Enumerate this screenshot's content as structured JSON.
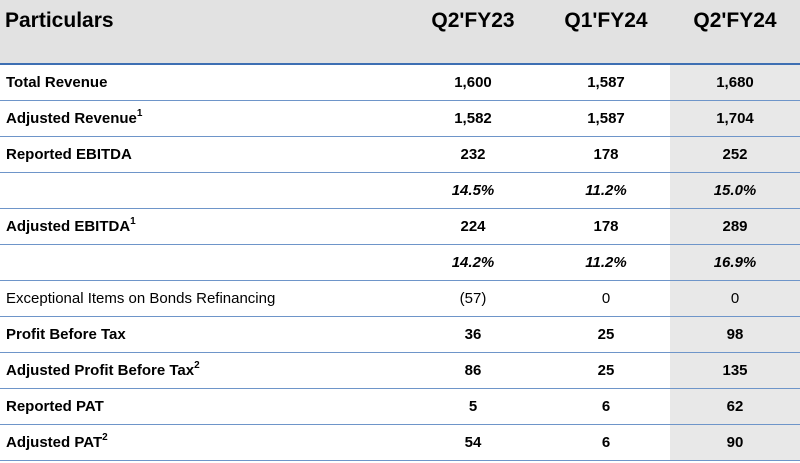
{
  "header": {
    "particulars": "Particulars",
    "periods": [
      "Q2'FY23",
      "Q1'FY24",
      "Q2'FY24"
    ]
  },
  "rows": [
    {
      "label": "Total Revenue",
      "sup": "",
      "values": [
        "1,600",
        "1,587",
        "1,680"
      ],
      "style": "b"
    },
    {
      "label": "Adjusted Revenue",
      "sup": "1",
      "values": [
        "1,582",
        "1,587",
        "1,704"
      ],
      "style": "b"
    },
    {
      "label": "Reported EBITDA",
      "sup": "",
      "values": [
        "232",
        "178",
        "252"
      ],
      "style": "b"
    },
    {
      "label": "",
      "sup": "",
      "values": [
        "14.5%",
        "11.2%",
        "15.0%"
      ],
      "style": "bi"
    },
    {
      "label": "Adjusted EBITDA",
      "sup": "1",
      "values": [
        "224",
        "178",
        "289"
      ],
      "style": "b"
    },
    {
      "label": "",
      "sup": "",
      "values": [
        "14.2%",
        "11.2%",
        "16.9%"
      ],
      "style": "bi"
    },
    {
      "label": "Exceptional Items on Bonds Refinancing",
      "sup": "",
      "values": [
        "(57)",
        "0",
        "0"
      ],
      "style": "n"
    },
    {
      "label": "Profit Before Tax",
      "sup": "",
      "values": [
        "36",
        "25",
        "98"
      ],
      "style": "b"
    },
    {
      "label": "Adjusted Profit Before Tax",
      "sup": "2",
      "values": [
        "86",
        "25",
        "135"
      ],
      "style": "b"
    },
    {
      "label": "Reported PAT",
      "sup": "",
      "values": [
        "5",
        "6",
        "62"
      ],
      "style": "b"
    },
    {
      "label": "Adjusted PAT",
      "sup": "2",
      "values": [
        "54",
        "6",
        "90"
      ],
      "style": "b"
    }
  ]
}
